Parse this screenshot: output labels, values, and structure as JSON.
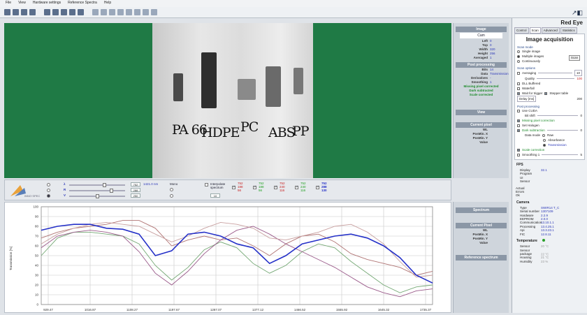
{
  "menu": [
    "File",
    "View",
    "Hardware settings",
    "Reference Spectra",
    "Help"
  ],
  "viewer": {
    "labels": [
      "PA 66",
      "HDPE",
      "PC",
      "ABS",
      "PP"
    ]
  },
  "info": {
    "image_head": "Image",
    "image_mode": "Cam",
    "image_kv": [
      {
        "k": "Left",
        "v": "0"
      },
      {
        "k": "Top",
        "v": "0"
      },
      {
        "k": "Width",
        "v": "320"
      },
      {
        "k": "Height",
        "v": "256"
      },
      {
        "k": "Averaged",
        "v": "1"
      }
    ],
    "post_head": "Post processing",
    "post_kv": [
      {
        "k": "Bits",
        "v": "14"
      },
      {
        "k": "Data",
        "v": "Transmission"
      },
      {
        "k": "Derivatives",
        "v": "-"
      },
      {
        "k": "Smoothing",
        "v": "1"
      }
    ],
    "notes": [
      "Missing pixel corrected",
      "Dark subtracted",
      "Scale corrected"
    ],
    "view_head": "View",
    "pixel_head": "Current pixel",
    "pixel_kv": [
      {
        "k": "WL",
        "v": ""
      },
      {
        "k": "PosMin. X",
        "v": ""
      },
      {
        "k": "PosMin. Y",
        "v": ""
      },
      {
        "k": "Value",
        "v": ""
      }
    ]
  },
  "controls": {
    "rgb_labels": [
      "λ",
      "R",
      "V"
    ],
    "rgb_values": [
      "752",
      "288",
      "250"
    ],
    "nm_label": "1421.0 nm",
    "mono_label": "Mono",
    "interp_label": "Interpolate spectrum",
    "interp_value": "10",
    "triples": [
      [
        "752",
        "188",
        "56"
      ],
      [
        "752",
        "188",
        "56"
      ],
      [
        "752",
        "240",
        "116"
      ],
      [
        "752",
        "240",
        "116"
      ],
      [
        "752",
        "288",
        "130"
      ]
    ]
  },
  "spectrum_right": {
    "spectrum_head": "Spectrum",
    "current_head": "Current Pixel",
    "current_kv": [
      {
        "k": "WL",
        "v": ""
      },
      {
        "k": "PosMin. X",
        "v": ""
      },
      {
        "k": "PosMin. Y",
        "v": ""
      },
      {
        "k": "Value",
        "v": ""
      }
    ],
    "reference_head": "Reference spectrum"
  },
  "panel": {
    "title": "Red Eye",
    "tabs": [
      "Control",
      "Scan",
      "Advanced",
      "Statistics"
    ],
    "heading": "Image acquisition",
    "scan_mode_label": "Scan mode",
    "scan_modes": [
      "Single image",
      "Multiple images",
      "Continuously"
    ],
    "scan_button": "Scan",
    "scan_options_label": "Scan options",
    "averaging_label": "Averaging",
    "averaging_value": "10",
    "quality_label": "Quality",
    "quality_value": "100",
    "options": [
      "DLL Buffered",
      "Waterfall"
    ],
    "trigger_label": "Wait for trigger",
    "stepper_label": "Stepper table",
    "delay_label": "Delay [ms]",
    "delay_value": "200",
    "post_label": "Post processing",
    "cuda_label": "Use CUDA",
    "bit_shift_label": "Bit shift",
    "bit_shift_value": "0",
    "missing_pixel_label": "Missing pixel correction",
    "halogen_label": "Set Halogen",
    "dark_label": "Dark subtraction",
    "dark_value": "0",
    "data_mode_label": "Data mode",
    "data_modes": [
      "Raw",
      "Absorbance",
      "Transmission"
    ],
    "scale_label": "Scale correction",
    "smoothing_label": "Smoothing 1",
    "smoothing_value": "5",
    "fps_head": "FPS",
    "fps": [
      {
        "k": "Display",
        "v": "32.1"
      },
      {
        "k": "Program",
        "v": ""
      },
      {
        "k": "UI",
        "v": ""
      },
      {
        "k": "Sensor",
        "v": ""
      }
    ],
    "actual": [
      {
        "k": "Actual",
        "v": ""
      },
      {
        "k": "Errors",
        "v": ""
      },
      {
        "k": "Ok",
        "v": ""
      }
    ],
    "camera_head": "Camera",
    "camera": [
      {
        "k": "Type",
        "v": "SWIR14 T_C"
      },
      {
        "k": "Serial number",
        "v": "1307109"
      },
      {
        "k": "Hardware",
        "v": "2.2.9"
      },
      {
        "k": "EEPROM",
        "v": "2.0.0"
      },
      {
        "k": "Communication",
        "v": "13.10.1.1"
      },
      {
        "k": "Processing",
        "v": "13.4.25.1"
      },
      {
        "k": "Api",
        "v": "13.3.23.1"
      },
      {
        "k": "FIC",
        "v": "12.8.11"
      }
    ],
    "temp_head": "Temperature",
    "temps": [
      {
        "k": "Sensor",
        "v": "20 °C"
      },
      {
        "k": "Sensor package",
        "v": "22 °C"
      },
      {
        "k": "Housing",
        "v": "21 °C"
      },
      {
        "k": "Humidity",
        "v": "23 %"
      }
    ]
  },
  "chart_data": {
    "type": "line",
    "x_ticks": [
      "929.47",
      "1016.87",
      "1108.27",
      "1197.67",
      "1287.07",
      "1377.12",
      "1466.52",
      "1555.92",
      "1645.32",
      "1735.37"
    ],
    "y_ticks": [
      "100",
      "90",
      "80",
      "70",
      "60",
      "50",
      "40",
      "30",
      "20",
      "10",
      "0"
    ],
    "ylabel": "Transmission [%]",
    "ylim": [
      0,
      100
    ],
    "colors": [
      "#2430c8",
      "#b07474",
      "#74a874",
      "#9a5a8a",
      "#c8a0a0"
    ],
    "series": [
      {
        "values": [
          76,
          80,
          82,
          82,
          78,
          77,
          72,
          50,
          55,
          72,
          74,
          70,
          62,
          58,
          42,
          50,
          62,
          66,
          70,
          72,
          68,
          60,
          48,
          30,
          22
        ]
      },
      {
        "values": [
          68,
          74,
          78,
          80,
          82,
          86,
          86,
          78,
          60,
          66,
          70,
          66,
          68,
          60,
          50,
          62,
          70,
          72,
          64,
          52,
          46,
          42,
          38,
          30,
          34
        ]
      },
      {
        "values": [
          50,
          68,
          74,
          74,
          72,
          70,
          62,
          40,
          25,
          38,
          56,
          64,
          58,
          42,
          32,
          40,
          54,
          62,
          58,
          44,
          32,
          20,
          12,
          18,
          20
        ]
      },
      {
        "values": [
          58,
          70,
          74,
          76,
          74,
          70,
          54,
          32,
          20,
          34,
          52,
          66,
          76,
          80,
          72,
          62,
          54,
          46,
          38,
          28,
          18,
          12,
          8,
          14,
          16
        ]
      },
      {
        "values": [
          62,
          72,
          78,
          82,
          84,
          82,
          80,
          72,
          64,
          70,
          78,
          84,
          82,
          78,
          68,
          66,
          70,
          74,
          80,
          82,
          74,
          62,
          44,
          28,
          30
        ]
      }
    ]
  }
}
